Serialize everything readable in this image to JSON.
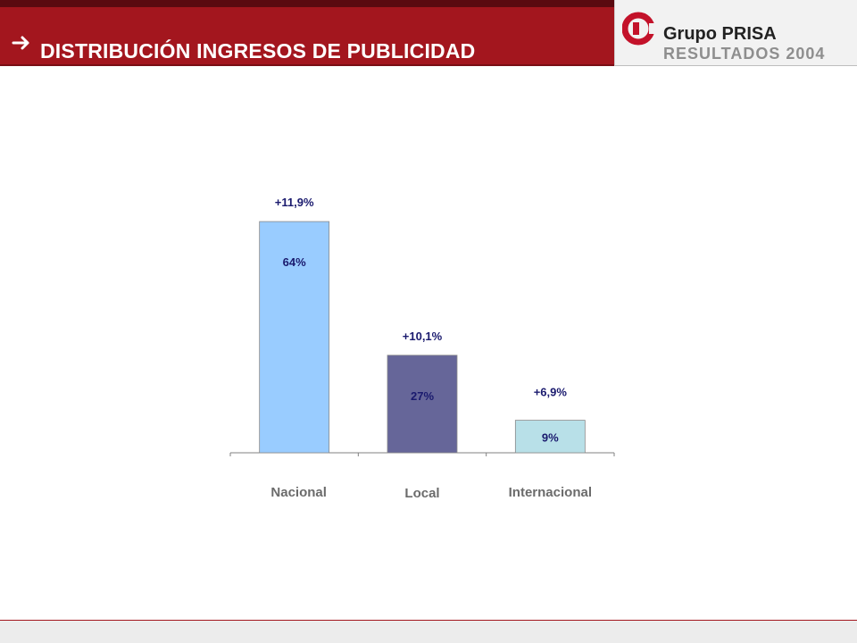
{
  "header": {
    "title": "DISTRIBUCIÓN INGRESOS DE PUBLICIDAD",
    "arrow_icon": "arrow-right-icon",
    "color": "#a3161e"
  },
  "logo": {
    "name": "Grupo PRISA",
    "subtitle": "RESULTADOS 2004",
    "mark_color": "#c3122a"
  },
  "chart_data": {
    "type": "bar",
    "categories": [
      "Nacional",
      "Local",
      "Internacional"
    ],
    "values": [
      64,
      27,
      9
    ],
    "value_labels": [
      "64%",
      "27%",
      "9%"
    ],
    "growth_labels": [
      "+11,9%",
      "+10,1%",
      "+6,9%"
    ],
    "colors": [
      "#99ccff",
      "#666699",
      "#b8e0e8"
    ],
    "ylim": [
      0,
      66
    ],
    "grid": false,
    "legend": "none"
  }
}
